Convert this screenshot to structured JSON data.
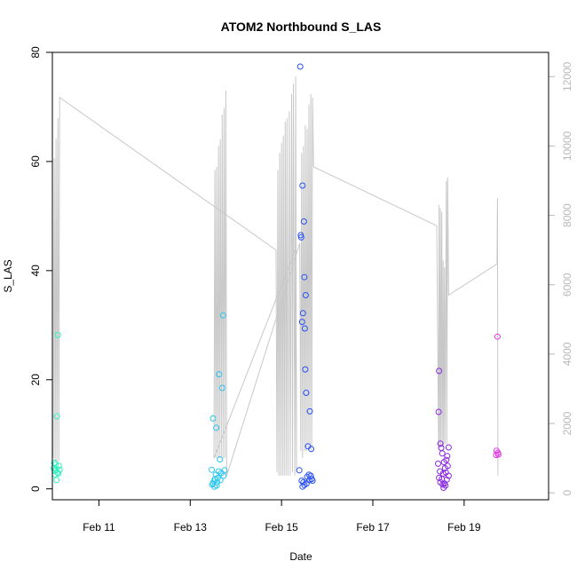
{
  "chart_data": {
    "type": "scatter",
    "title": "ATOM2 Northbound S_LAS",
    "xlabel": "Date",
    "ylabel": "S_LAS",
    "x_axis": {
      "unit": "days since Feb 10 00:00",
      "range": [
        -0.02,
        10.85
      ],
      "ticks": [
        {
          "value": 1,
          "label": "Feb 11"
        },
        {
          "value": 3,
          "label": "Feb 13"
        },
        {
          "value": 5,
          "label": "Feb 15"
        },
        {
          "value": 7,
          "label": "Feb 17"
        },
        {
          "value": 9,
          "label": "Feb 19"
        }
      ]
    },
    "y_axis_left": {
      "range": [
        -2,
        80
      ],
      "ticks": [
        0,
        20,
        40,
        60,
        80
      ]
    },
    "y_axis_right": {
      "range": [
        -200,
        12700
      ],
      "ticks": [
        0,
        2000,
        4000,
        6000,
        8000,
        10000,
        12000
      ],
      "color": "#b8b8b8"
    },
    "series": [
      {
        "color": "#33f0c0",
        "points": [
          [
            0.1,
            28.2
          ],
          [
            0.08,
            13.3
          ],
          [
            0.02,
            4.8
          ],
          [
            0.05,
            4.5
          ],
          [
            0.12,
            4.2
          ],
          [
            0.01,
            3.8
          ],
          [
            0.06,
            3.6
          ],
          [
            0.14,
            3.5
          ],
          [
            0.03,
            3.3
          ],
          [
            0.09,
            3.0
          ],
          [
            0.11,
            2.8
          ],
          [
            0.04,
            2.6
          ],
          [
            0.07,
            1.6
          ]
        ]
      },
      {
        "color": "#29c6ee",
        "points": [
          [
            3.72,
            31.8
          ],
          [
            3.63,
            21.0
          ],
          [
            3.7,
            18.5
          ],
          [
            3.5,
            12.9
          ],
          [
            3.57,
            11.2
          ],
          [
            3.65,
            5.4
          ],
          [
            3.47,
            3.5
          ],
          [
            3.75,
            3.4
          ],
          [
            3.62,
            3.2
          ],
          [
            3.68,
            2.9
          ],
          [
            3.56,
            2.6
          ],
          [
            3.73,
            2.4
          ],
          [
            3.6,
            2.0
          ],
          [
            3.54,
            1.8
          ],
          [
            3.66,
            1.6
          ],
          [
            3.52,
            1.4
          ],
          [
            3.59,
            1.2
          ],
          [
            3.5,
            1.0
          ],
          [
            3.48,
            0.8
          ],
          [
            3.58,
            0.6
          ],
          [
            3.53,
            0.4
          ]
        ]
      },
      {
        "color": "#2950f0",
        "points": [
          [
            5.41,
            77.4
          ],
          [
            5.46,
            55.6
          ],
          [
            5.49,
            49.0
          ],
          [
            5.42,
            46.5
          ],
          [
            5.43,
            46.1
          ],
          [
            5.5,
            38.8
          ],
          [
            5.53,
            35.5
          ],
          [
            5.47,
            32.2
          ],
          [
            5.45,
            30.6
          ],
          [
            5.51,
            29.4
          ],
          [
            5.52,
            21.9
          ],
          [
            5.54,
            17.6
          ],
          [
            5.62,
            14.2
          ],
          [
            5.58,
            7.8
          ],
          [
            5.65,
            7.3
          ],
          [
            5.39,
            3.4
          ],
          [
            5.6,
            2.6
          ],
          [
            5.64,
            2.4
          ],
          [
            5.56,
            2.2
          ],
          [
            5.66,
            1.8
          ],
          [
            5.61,
            1.6
          ],
          [
            5.44,
            1.5
          ],
          [
            5.68,
            1.5
          ],
          [
            5.48,
            1.2
          ],
          [
            5.55,
            1.0
          ],
          [
            5.5,
            0.7
          ],
          [
            5.46,
            0.4
          ]
        ]
      },
      {
        "color": "#8a2be2",
        "points": [
          [
            8.45,
            21.6
          ],
          [
            8.44,
            14.1
          ],
          [
            8.48,
            8.3
          ],
          [
            8.5,
            7.5
          ],
          [
            8.66,
            7.6
          ],
          [
            8.52,
            6.5
          ],
          [
            8.63,
            6.0
          ],
          [
            8.61,
            5.3
          ],
          [
            8.43,
            4.6
          ],
          [
            8.56,
            4.9
          ],
          [
            8.64,
            4.2
          ],
          [
            8.58,
            3.8
          ],
          [
            8.47,
            3.2
          ],
          [
            8.6,
            3.0
          ],
          [
            8.54,
            2.8
          ],
          [
            8.66,
            2.4
          ],
          [
            8.45,
            2.0
          ],
          [
            8.51,
            1.8
          ],
          [
            8.62,
            1.7
          ],
          [
            8.48,
            1.2
          ],
          [
            8.57,
            1.0
          ],
          [
            8.53,
            0.8
          ],
          [
            8.59,
            0.6
          ],
          [
            8.55,
            0.2
          ]
        ]
      },
      {
        "color": "#e636e6",
        "points": [
          [
            9.73,
            27.9
          ],
          [
            9.71,
            7.0
          ],
          [
            9.74,
            6.6
          ],
          [
            9.7,
            6.2
          ],
          [
            9.75,
            6.3
          ]
        ]
      }
    ],
    "line_series": {
      "color": "#c8c8c8",
      "axis": "right",
      "points": [
        [
          0.0,
          1000
        ],
        [
          0.02,
          9650
        ],
        [
          0.04,
          900
        ],
        [
          0.06,
          10200
        ],
        [
          0.08,
          900
        ],
        [
          0.1,
          10800
        ],
        [
          0.12,
          900
        ],
        [
          0.14,
          11400
        ],
        [
          4.88,
          7000
        ],
        [
          4.9,
          600
        ],
        [
          4.92,
          9300
        ],
        [
          4.94,
          500
        ],
        [
          4.96,
          9800
        ],
        [
          4.98,
          500
        ],
        [
          5.0,
          10100
        ],
        [
          5.02,
          500
        ],
        [
          5.04,
          10300
        ],
        [
          5.06,
          500
        ],
        [
          5.08,
          10700
        ],
        [
          5.1,
          500
        ],
        [
          5.12,
          10800
        ],
        [
          5.14,
          500
        ],
        [
          5.17,
          11000
        ],
        [
          5.19,
          500
        ],
        [
          5.22,
          11500
        ],
        [
          5.24,
          600
        ],
        [
          5.26,
          11800
        ],
        [
          5.29,
          500
        ],
        [
          5.31,
          12000
        ],
        [
          5.33,
          600
        ],
        [
          5.3,
          7000
        ],
        [
          3.52,
          1000
        ],
        [
          3.54,
          9300
        ],
        [
          3.56,
          1000
        ],
        [
          3.58,
          9400
        ],
        [
          3.6,
          1000
        ],
        [
          3.62,
          10000
        ],
        [
          3.64,
          1000
        ],
        [
          3.66,
          10200
        ],
        [
          3.68,
          1000
        ],
        [
          3.7,
          10900
        ],
        [
          3.72,
          1000
        ],
        [
          3.74,
          11100
        ],
        [
          3.76,
          1000
        ],
        [
          3.78,
          11600
        ],
        [
          3.8,
          500
        ],
        [
          5.4,
          7200
        ],
        [
          5.42,
          1200
        ],
        [
          5.44,
          9800
        ],
        [
          5.46,
          1000
        ],
        [
          5.48,
          10000
        ],
        [
          5.5,
          1200
        ],
        [
          5.52,
          10600
        ],
        [
          5.54,
          1200
        ],
        [
          5.56,
          10500
        ],
        [
          5.58,
          1300
        ],
        [
          5.6,
          11200
        ],
        [
          5.62,
          1300
        ],
        [
          5.64,
          11500
        ],
        [
          5.66,
          1200
        ],
        [
          5.68,
          11400
        ],
        [
          5.7,
          9400
        ],
        [
          8.4,
          7700
        ],
        [
          8.44,
          1300
        ],
        [
          8.45,
          8300
        ],
        [
          8.46,
          1300
        ],
        [
          8.48,
          8200
        ],
        [
          8.49,
          1300
        ],
        [
          8.51,
          8100
        ],
        [
          8.52,
          1300
        ],
        [
          8.54,
          6700
        ],
        [
          8.55,
          1300
        ],
        [
          8.57,
          6500
        ],
        [
          8.58,
          1400
        ],
        [
          8.61,
          9000
        ],
        [
          8.62,
          1400
        ],
        [
          8.64,
          9100
        ],
        [
          8.66,
          5700
        ],
        [
          9.72,
          6600
        ],
        [
          9.73,
          8500
        ],
        [
          9.74,
          500
        ]
      ]
    }
  }
}
